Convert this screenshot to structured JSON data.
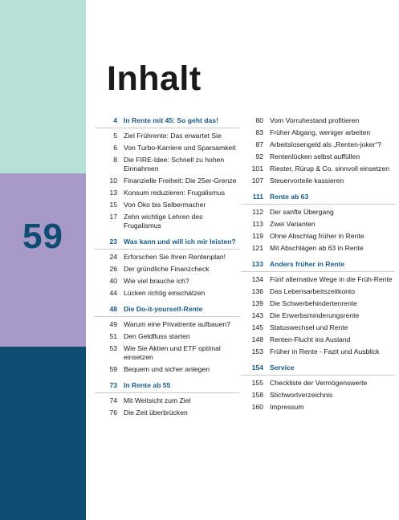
{
  "page_number": "59",
  "title": "Inhalt",
  "left_column": [
    {
      "num": "4",
      "text": "In Rente mit 45: So geht das!",
      "chapter": true
    },
    {
      "num": "5",
      "text": "Ziel Frührente: Das erwartet Sie"
    },
    {
      "num": "6",
      "text": "Von Turbo-Karriere und Sparsamkeit"
    },
    {
      "num": "8",
      "text": "Die FIRE-Idee: Schnell zu hohen Einnahmen"
    },
    {
      "num": "10",
      "text": "Finanzielle Freiheit: Die 25er-Grenze"
    },
    {
      "num": "13",
      "text": "Konsum reduzieren: Frugalismus"
    },
    {
      "num": "15",
      "text": "Von Öko bis Selbermacher"
    },
    {
      "num": "17",
      "text": "Zehn wichtige Lehren des Frugalismus"
    },
    {
      "num": "23",
      "text": "Was kann und will ich mir leisten?",
      "chapter": true
    },
    {
      "num": "24",
      "text": "Erforschen Sie Ihren Rentenplan!"
    },
    {
      "num": "26",
      "text": "Der gründliche Finanzcheck"
    },
    {
      "num": "40",
      "text": "Wie viel brauche ich?"
    },
    {
      "num": "44",
      "text": "Lücken richtig einschätzen"
    },
    {
      "num": "48",
      "text": "Die Do-it-yourself-Rente",
      "chapter": true
    },
    {
      "num": "49",
      "text": "Warum eine Privatrente aufbauen?"
    },
    {
      "num": "51",
      "text": "Den Geldfluss starten"
    },
    {
      "num": "53",
      "text": "Wie Sie Aktien und ETF optimal einsetzen"
    },
    {
      "num": "59",
      "text": "Bequem und sicher anlegen"
    },
    {
      "num": "73",
      "text": "In Rente ab 55",
      "chapter": true
    },
    {
      "num": "74",
      "text": "Mit Weitsicht zum Ziel"
    },
    {
      "num": "76",
      "text": "Die Zeit überbrücken"
    }
  ],
  "right_column": [
    {
      "num": "80",
      "text": "Vom Vorruhestand profitieren"
    },
    {
      "num": "83",
      "text": "Früher Abgang, weniger arbeiten"
    },
    {
      "num": "87",
      "text": "Arbeitslosengeld als „Renten-joker“?"
    },
    {
      "num": "92",
      "text": "Rentenlücken selbst auffüllen"
    },
    {
      "num": "101",
      "text": "Riester, Rürup & Co. sinnvoll einsetzen"
    },
    {
      "num": "107",
      "text": "Steuervorteile kassieren"
    },
    {
      "num": "111",
      "text": "Rente ab 63",
      "chapter": true
    },
    {
      "num": "112",
      "text": "Der sanfte Übergang"
    },
    {
      "num": "113",
      "text": "Zwei Varianten"
    },
    {
      "num": "119",
      "text": "Ohne Abschlag früher in Rente"
    },
    {
      "num": "121",
      "text": "Mit Abschlägen ab 63 in Rente"
    },
    {
      "num": "133",
      "text": "Anders früher in Rente",
      "chapter": true
    },
    {
      "num": "134",
      "text": "Fünf alternative Wege in die Früh-Rente"
    },
    {
      "num": "136",
      "text": "Das Lebensarbeitszeitkonto"
    },
    {
      "num": "139",
      "text": "Die Schwerbehindertenrente"
    },
    {
      "num": "143",
      "text": "Die Erwerbsminderungsrente"
    },
    {
      "num": "145",
      "text": "Statuswechsel und Rente"
    },
    {
      "num": "148",
      "text": "Renten-Flucht ins Ausland"
    },
    {
      "num": "153",
      "text": "Früher in Rente - Fazit und Ausblick"
    },
    {
      "num": "154",
      "text": "Service",
      "chapter": true
    },
    {
      "num": "155",
      "text": "Checkliste der Vermögenswerte"
    },
    {
      "num": "158",
      "text": "Stichwortverzeichnis"
    },
    {
      "num": "160",
      "text": "Impressum"
    }
  ]
}
